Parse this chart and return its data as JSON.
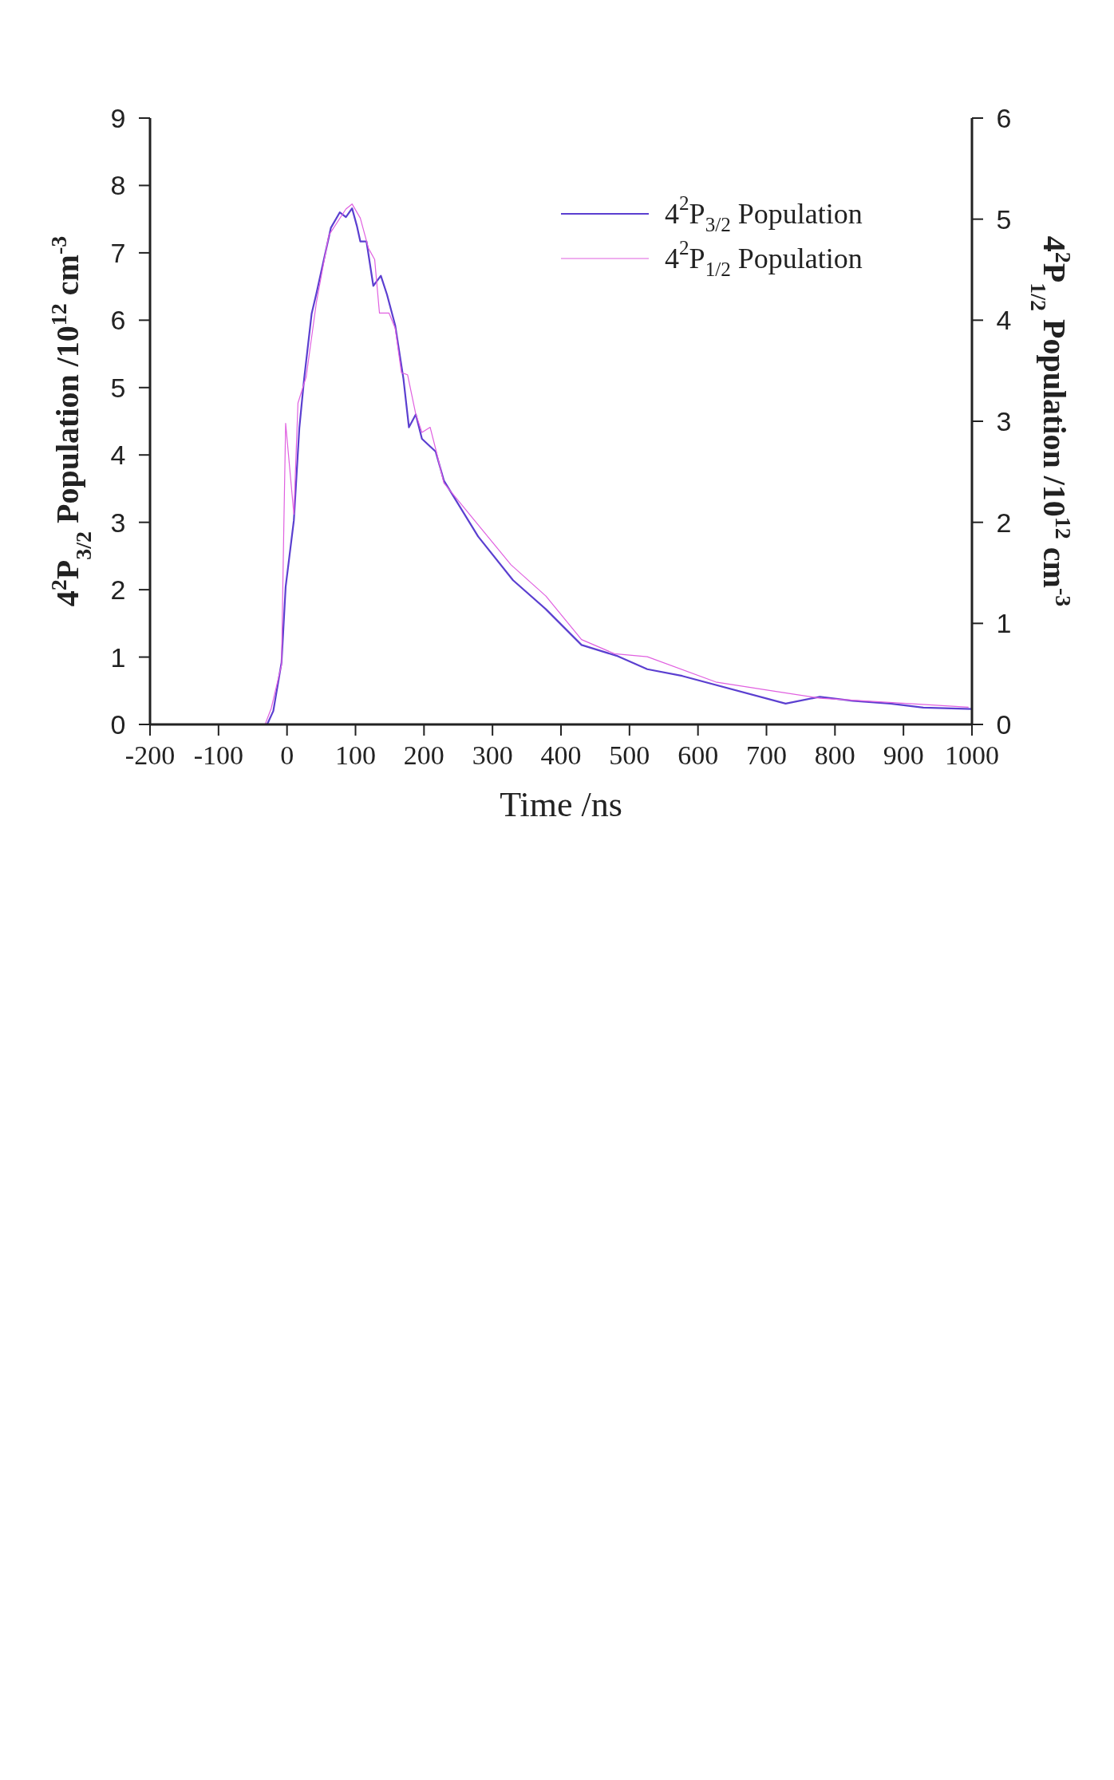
{
  "chart_data": {
    "type": "line",
    "xlabel": "Time /ns",
    "ylabel": "4$^{2}$P$_{3/2}$ Population /10$^{12}$ cm$^{-3}$",
    "y2label": "4$^{2}$P$_{1/2}$ Population /10$^{12}$ cm$^{-3}$",
    "xlim": [
      -200,
      1000
    ],
    "xticks": [
      -200,
      -100,
      0,
      100,
      200,
      300,
      400,
      500,
      600,
      700,
      800,
      900,
      1000
    ],
    "ylim": [
      0,
      9
    ],
    "yticks": [
      0,
      1,
      2,
      3,
      4,
      5,
      6,
      7,
      8,
      9
    ],
    "y2lim": [
      0,
      6
    ],
    "y2ticks": [
      0,
      1,
      2,
      3,
      4,
      5,
      6
    ],
    "legend": "top",
    "grid": false,
    "marker": "none",
    "line_style": "solid",
    "series": [
      {
        "name": "4$^{2}$P$_{3/2}$ Population",
        "color": "#5b3fd0",
        "x": [
          -29,
          -20,
          -8,
          -2,
          10,
          18,
          25,
          36,
          43,
          64,
          77,
          86,
          95,
          102,
          107,
          116,
          126,
          137,
          146,
          158,
          170,
          178,
          188,
          197,
          217,
          229,
          279,
          330,
          378,
          430,
          481,
          526,
          577,
          728,
          778,
          826,
          881,
          929,
          1000
        ],
        "values": [
          0,
          0.2,
          0.92,
          2.04,
          3.03,
          4.4,
          5.13,
          6.1,
          6.4,
          7.37,
          7.6,
          7.53,
          7.66,
          7.4,
          7.17,
          7.17,
          6.51,
          6.66,
          6.38,
          5.92,
          5.13,
          4.41,
          4.6,
          4.24,
          4.05,
          3.62,
          2.79,
          2.14,
          1.71,
          1.18,
          1.02,
          0.82,
          0.72,
          0.31,
          0.41,
          0.35,
          0.31,
          0.25,
          0.23
        ]
      },
      {
        "name": "4$^{2}$P$_{1/2}$ Population",
        "color": "#e060e0",
        "axis": "y2",
        "x": [
          -32,
          -23,
          -8,
          -5,
          -2,
          10,
          16,
          28,
          43,
          61,
          86,
          95,
          107,
          119,
          128,
          135,
          149,
          158,
          167,
          176,
          188,
          197,
          209,
          218,
          229,
          276,
          327,
          378,
          430,
          478,
          526,
          626,
          710,
          778,
          995
        ],
        "values": [
          0,
          0.16,
          0.59,
          1.82,
          2.98,
          2.08,
          3.18,
          3.44,
          4.18,
          4.84,
          5.1,
          5.15,
          5.01,
          4.71,
          4.6,
          4.07,
          4.07,
          3.92,
          3.48,
          3.46,
          3.07,
          2.89,
          2.94,
          2.7,
          2.39,
          2.0,
          1.58,
          1.27,
          0.84,
          0.7,
          0.67,
          0.42,
          0.33,
          0.26,
          0.17
        ]
      }
    ]
  }
}
